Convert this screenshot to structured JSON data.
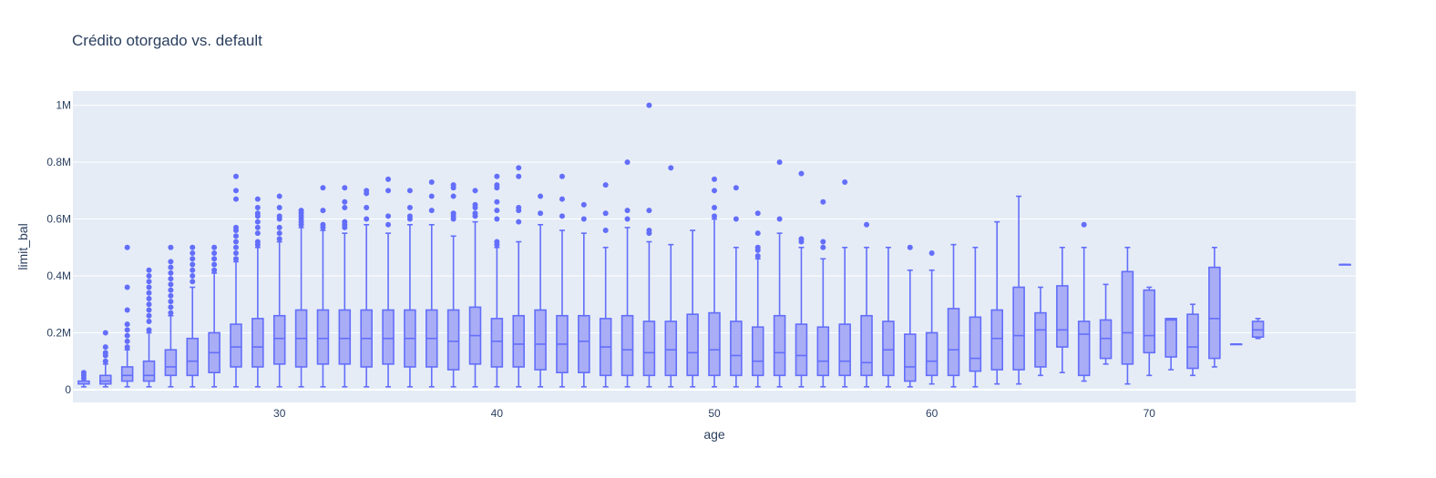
{
  "chart_data": {
    "type": "box",
    "title": "Crédito otorgado vs. default",
    "xlabel": "age",
    "ylabel": "limit_bal",
    "xlim": [
      20.5,
      79.5
    ],
    "ylim": [
      -45000,
      1050000
    ],
    "x_ticks": [
      30,
      40,
      50,
      60,
      70
    ],
    "y_ticks": [
      0,
      200000,
      400000,
      600000,
      800000,
      1000000
    ],
    "y_tick_labels": [
      "0",
      "0.2M",
      "0.4M",
      "0.6M",
      "0.8M",
      "1M"
    ],
    "grid": true,
    "colors": {
      "box_line": "#636efa",
      "box_fill": "#a9adf5",
      "plot_bg": "#e5ecf6",
      "grid": "#ffffff",
      "text": "#2a3f5f"
    },
    "boxes": [
      {
        "age": 21,
        "min": 10000,
        "q1": 20000,
        "median": 20000,
        "q3": 30000,
        "max": 30000,
        "outliers": [
          40000,
          50000,
          60000
        ]
      },
      {
        "age": 22,
        "min": 10000,
        "q1": 20000,
        "median": 30000,
        "q3": 50000,
        "max": 90000,
        "outliers": [
          100000,
          120000,
          130000,
          150000,
          200000
        ]
      },
      {
        "age": 23,
        "min": 10000,
        "q1": 30000,
        "median": 50000,
        "q3": 80000,
        "max": 140000,
        "outliers": [
          150000,
          170000,
          190000,
          210000,
          230000,
          280000,
          360000,
          500000
        ]
      },
      {
        "age": 24,
        "min": 10000,
        "q1": 30000,
        "median": 50000,
        "q3": 100000,
        "max": 200000,
        "outliers": [
          210000,
          240000,
          260000,
          280000,
          300000,
          320000,
          340000,
          360000,
          380000,
          400000,
          420000
        ]
      },
      {
        "age": 25,
        "min": 10000,
        "q1": 50000,
        "median": 80000,
        "q3": 140000,
        "max": 260000,
        "outliers": [
          270000,
          290000,
          310000,
          330000,
          350000,
          370000,
          390000,
          410000,
          430000,
          450000,
          500000
        ]
      },
      {
        "age": 26,
        "min": 10000,
        "q1": 50000,
        "median": 100000,
        "q3": 180000,
        "max": 360000,
        "outliers": [
          380000,
          400000,
          420000,
          440000,
          460000,
          480000,
          500000
        ]
      },
      {
        "age": 27,
        "min": 10000,
        "q1": 60000,
        "median": 130000,
        "q3": 200000,
        "max": 410000,
        "outliers": [
          420000,
          440000,
          460000,
          480000,
          500000
        ]
      },
      {
        "age": 28,
        "min": 10000,
        "q1": 80000,
        "median": 150000,
        "q3": 230000,
        "max": 450000,
        "outliers": [
          460000,
          480000,
          500000,
          520000,
          540000,
          560000,
          570000,
          670000,
          700000,
          750000
        ]
      },
      {
        "age": 29,
        "min": 10000,
        "q1": 80000,
        "median": 150000,
        "q3": 250000,
        "max": 500000,
        "outliers": [
          510000,
          520000,
          550000,
          570000,
          590000,
          610000,
          620000,
          640000,
          670000
        ]
      },
      {
        "age": 30,
        "min": 10000,
        "q1": 90000,
        "median": 180000,
        "q3": 260000,
        "max": 520000,
        "outliers": [
          530000,
          550000,
          570000,
          600000,
          610000,
          640000,
          680000
        ]
      },
      {
        "age": 31,
        "min": 10000,
        "q1": 80000,
        "median": 180000,
        "q3": 280000,
        "max": 570000,
        "outliers": [
          580000,
          590000,
          600000,
          610000,
          620000,
          630000
        ]
      },
      {
        "age": 32,
        "min": 10000,
        "q1": 90000,
        "median": 180000,
        "q3": 280000,
        "max": 560000,
        "outliers": [
          570000,
          580000,
          630000,
          710000
        ]
      },
      {
        "age": 33,
        "min": 10000,
        "q1": 90000,
        "median": 180000,
        "q3": 280000,
        "max": 550000,
        "outliers": [
          570000,
          580000,
          590000,
          640000,
          660000,
          710000
        ]
      },
      {
        "age": 34,
        "min": 10000,
        "q1": 80000,
        "median": 180000,
        "q3": 280000,
        "max": 580000,
        "outliers": [
          600000,
          640000,
          690000,
          700000
        ]
      },
      {
        "age": 35,
        "min": 10000,
        "q1": 90000,
        "median": 180000,
        "q3": 280000,
        "max": 550000,
        "outliers": [
          580000,
          610000,
          700000,
          740000
        ]
      },
      {
        "age": 36,
        "min": 10000,
        "q1": 80000,
        "median": 180000,
        "q3": 280000,
        "max": 580000,
        "outliers": [
          600000,
          610000,
          640000,
          700000
        ]
      },
      {
        "age": 37,
        "min": 10000,
        "q1": 80000,
        "median": 180000,
        "q3": 280000,
        "max": 580000,
        "outliers": [
          630000,
          680000,
          730000
        ]
      },
      {
        "age": 38,
        "min": 10000,
        "q1": 70000,
        "median": 170000,
        "q3": 280000,
        "max": 540000,
        "outliers": [
          600000,
          610000,
          620000,
          680000,
          710000,
          720000
        ]
      },
      {
        "age": 39,
        "min": 10000,
        "q1": 90000,
        "median": 190000,
        "q3": 290000,
        "max": 590000,
        "outliers": [
          610000,
          620000,
          640000,
          650000,
          700000
        ]
      },
      {
        "age": 40,
        "min": 10000,
        "q1": 80000,
        "median": 170000,
        "q3": 250000,
        "max": 500000,
        "outliers": [
          510000,
          520000,
          600000,
          630000,
          660000,
          710000,
          720000,
          750000
        ]
      },
      {
        "age": 41,
        "min": 10000,
        "q1": 80000,
        "median": 160000,
        "q3": 260000,
        "max": 520000,
        "outliers": [
          590000,
          630000,
          640000,
          750000,
          780000
        ]
      },
      {
        "age": 42,
        "min": 10000,
        "q1": 70000,
        "median": 160000,
        "q3": 280000,
        "max": 580000,
        "outliers": [
          620000,
          680000
        ]
      },
      {
        "age": 43,
        "min": 10000,
        "q1": 60000,
        "median": 160000,
        "q3": 260000,
        "max": 560000,
        "outliers": [
          610000,
          670000,
          750000
        ]
      },
      {
        "age": 44,
        "min": 10000,
        "q1": 60000,
        "median": 170000,
        "q3": 260000,
        "max": 550000,
        "outliers": [
          600000,
          650000
        ]
      },
      {
        "age": 45,
        "min": 10000,
        "q1": 50000,
        "median": 150000,
        "q3": 250000,
        "max": 500000,
        "outliers": [
          560000,
          620000,
          720000
        ]
      },
      {
        "age": 46,
        "min": 10000,
        "q1": 50000,
        "median": 140000,
        "q3": 260000,
        "max": 570000,
        "outliers": [
          600000,
          630000,
          800000
        ]
      },
      {
        "age": 47,
        "min": 10000,
        "q1": 50000,
        "median": 130000,
        "q3": 240000,
        "max": 520000,
        "outliers": [
          550000,
          560000,
          630000,
          1000000
        ]
      },
      {
        "age": 48,
        "min": 10000,
        "q1": 50000,
        "median": 140000,
        "q3": 240000,
        "max": 510000,
        "outliers": [
          780000
        ]
      },
      {
        "age": 49,
        "min": 10000,
        "q1": 50000,
        "median": 130000,
        "q3": 265000,
        "max": 560000,
        "outliers": []
      },
      {
        "age": 50,
        "min": 10000,
        "q1": 50000,
        "median": 140000,
        "q3": 270000,
        "max": 600000,
        "outliers": [
          610000,
          640000,
          700000,
          740000
        ]
      },
      {
        "age": 51,
        "min": 10000,
        "q1": 50000,
        "median": 120000,
        "q3": 240000,
        "max": 500000,
        "outliers": [
          600000,
          710000
        ]
      },
      {
        "age": 52,
        "min": 10000,
        "q1": 50000,
        "median": 100000,
        "q3": 220000,
        "max": 460000,
        "outliers": [
          470000,
          490000,
          500000,
          550000,
          620000
        ]
      },
      {
        "age": 53,
        "min": 10000,
        "q1": 50000,
        "median": 130000,
        "q3": 260000,
        "max": 550000,
        "outliers": [
          600000,
          800000
        ]
      },
      {
        "age": 54,
        "min": 10000,
        "q1": 50000,
        "median": 120000,
        "q3": 230000,
        "max": 500000,
        "outliers": [
          520000,
          530000,
          760000
        ]
      },
      {
        "age": 55,
        "min": 10000,
        "q1": 50000,
        "median": 100000,
        "q3": 220000,
        "max": 460000,
        "outliers": [
          500000,
          520000,
          660000
        ]
      },
      {
        "age": 56,
        "min": 10000,
        "q1": 50000,
        "median": 100000,
        "q3": 230000,
        "max": 500000,
        "outliers": [
          730000
        ]
      },
      {
        "age": 57,
        "min": 10000,
        "q1": 50000,
        "median": 95000,
        "q3": 260000,
        "max": 500000,
        "outliers": [
          580000
        ]
      },
      {
        "age": 58,
        "min": 10000,
        "q1": 50000,
        "median": 140000,
        "q3": 240000,
        "max": 500000,
        "outliers": []
      },
      {
        "age": 59,
        "min": 10000,
        "q1": 30000,
        "median": 80000,
        "q3": 195000,
        "max": 420000,
        "outliers": [
          500000
        ]
      },
      {
        "age": 60,
        "min": 20000,
        "q1": 50000,
        "median": 100000,
        "q3": 200000,
        "max": 420000,
        "outliers": [
          480000
        ]
      },
      {
        "age": 61,
        "min": 10000,
        "q1": 50000,
        "median": 140000,
        "q3": 285000,
        "max": 510000,
        "outliers": []
      },
      {
        "age": 62,
        "min": 10000,
        "q1": 65000,
        "median": 110000,
        "q3": 255000,
        "max": 500000,
        "outliers": []
      },
      {
        "age": 63,
        "min": 20000,
        "q1": 70000,
        "median": 180000,
        "q3": 280000,
        "max": 590000,
        "outliers": []
      },
      {
        "age": 64,
        "min": 20000,
        "q1": 70000,
        "median": 190000,
        "q3": 360000,
        "max": 680000,
        "outliers": []
      },
      {
        "age": 65,
        "min": 50000,
        "q1": 80000,
        "median": 210000,
        "q3": 270000,
        "max": 360000,
        "outliers": []
      },
      {
        "age": 66,
        "min": 60000,
        "q1": 150000,
        "median": 210000,
        "q3": 365000,
        "max": 500000,
        "outliers": []
      },
      {
        "age": 67,
        "min": 30000,
        "q1": 50000,
        "median": 195000,
        "q3": 240000,
        "max": 500000,
        "outliers": [
          580000
        ]
      },
      {
        "age": 68,
        "min": 90000,
        "q1": 110000,
        "median": 180000,
        "q3": 245000,
        "max": 370000,
        "outliers": []
      },
      {
        "age": 69,
        "min": 20000,
        "q1": 90000,
        "median": 200000,
        "q3": 415000,
        "max": 500000,
        "outliers": []
      },
      {
        "age": 70,
        "min": 50000,
        "q1": 130000,
        "median": 190000,
        "q3": 350000,
        "max": 360000,
        "outliers": []
      },
      {
        "age": 71,
        "min": 70000,
        "q1": 115000,
        "median": 245000,
        "q3": 250000,
        "max": 250000,
        "outliers": []
      },
      {
        "age": 72,
        "min": 50000,
        "q1": 75000,
        "median": 150000,
        "q3": 265000,
        "max": 300000,
        "outliers": []
      },
      {
        "age": 73,
        "min": 80000,
        "q1": 110000,
        "median": 250000,
        "q3": 430000,
        "max": 500000,
        "outliers": []
      },
      {
        "age": 74,
        "min": 160000,
        "q1": 160000,
        "median": 160000,
        "q3": 160000,
        "max": 160000,
        "outliers": []
      },
      {
        "age": 75,
        "min": 180000,
        "q1": 185000,
        "median": 210000,
        "q3": 240000,
        "max": 250000,
        "outliers": []
      },
      {
        "age": 79,
        "min": 440000,
        "q1": 440000,
        "median": 440000,
        "q3": 440000,
        "max": 440000,
        "outliers": []
      }
    ]
  }
}
